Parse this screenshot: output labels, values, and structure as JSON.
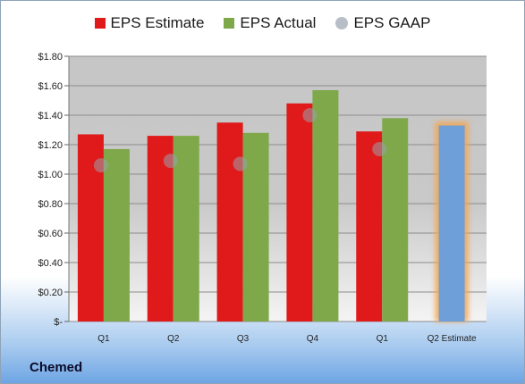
{
  "company": "Chemed",
  "chart_data": {
    "type": "bar",
    "categories": [
      "Q1",
      "Q2",
      "Q3",
      "Q4",
      "Q1",
      "Q2 Estimate"
    ],
    "series": [
      {
        "name": "EPS Estimate",
        "color": "#e01a1a",
        "values": [
          1.27,
          1.26,
          1.35,
          1.48,
          1.29,
          null
        ]
      },
      {
        "name": "EPS Actual",
        "color": "#7fa84a",
        "values": [
          1.17,
          1.26,
          1.28,
          1.57,
          1.38,
          null
        ]
      },
      {
        "name": "EPS GAAP",
        "color": "#b0b6c0",
        "marker": "circle",
        "values": [
          1.06,
          1.09,
          1.07,
          1.4,
          1.17,
          null
        ]
      }
    ],
    "estimate_bar": {
      "category": "Q2 Estimate",
      "value": 1.33,
      "color": "#6f9fd8",
      "glow": "#f3a552"
    },
    "ylim": [
      0,
      1.8
    ],
    "ytick_labels": [
      "$-",
      "$0.20",
      "$0.40",
      "$0.60",
      "$0.80",
      "$1.00",
      "$1.20",
      "$1.40",
      "$1.60",
      "$1.80"
    ],
    "ytick_values": [
      0,
      0.2,
      0.4,
      0.6,
      0.8,
      1.0,
      1.2,
      1.4,
      1.6,
      1.8
    ],
    "legend_position": "top",
    "grid": true
  }
}
